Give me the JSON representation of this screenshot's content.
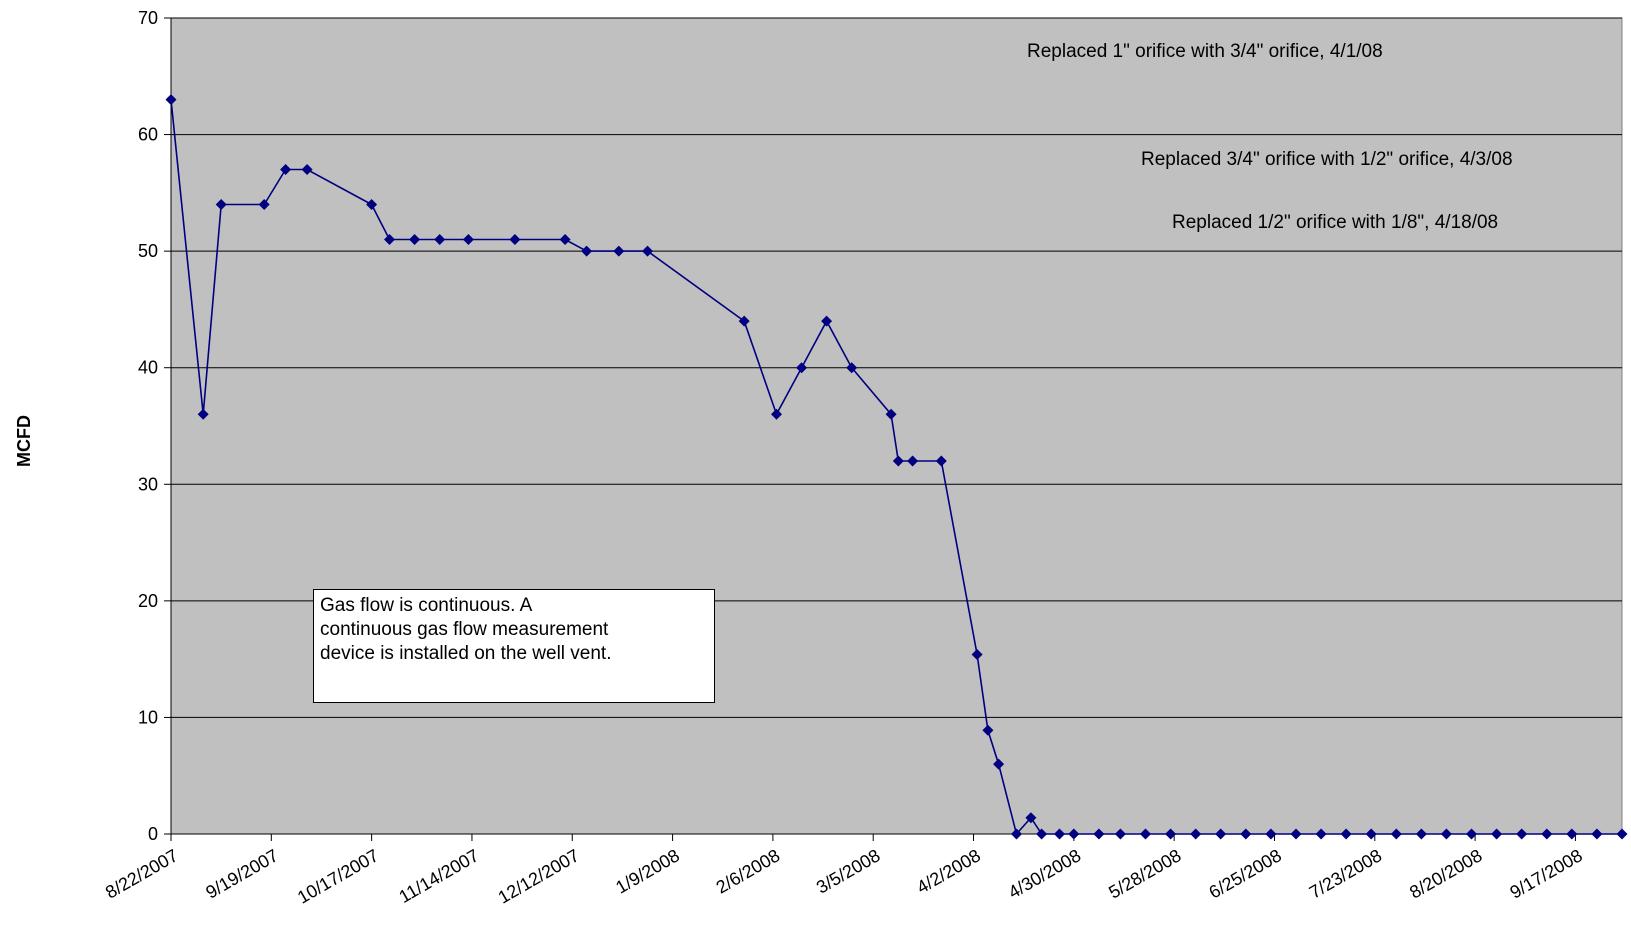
{
  "chart_data": {
    "type": "line",
    "title": "",
    "xlabel": "",
    "ylabel": "MCFD",
    "ylim": [
      0,
      70
    ],
    "yticks": [
      0,
      10,
      20,
      30,
      40,
      50,
      60,
      70
    ],
    "xlim": [
      "8/22/2007",
      "9/30/2008"
    ],
    "xticks": [
      "8/22/2007",
      "9/19/2007",
      "10/17/2007",
      "11/14/2007",
      "12/12/2007",
      "1/9/2008",
      "2/6/2008",
      "3/5/2008",
      "4/2/2008",
      "4/30/2008",
      "5/28/2008",
      "6/25/2008",
      "7/23/2008",
      "8/20/2008",
      "9/17/2008"
    ],
    "grid": "horizontal",
    "plot_background": "#c0c0c0",
    "series_color": "#000080",
    "marker": "diamond",
    "series": [
      {
        "points": [
          [
            "8/22/2007",
            63
          ],
          [
            "8/31/2007",
            36
          ],
          [
            "9/5/2007",
            54
          ],
          [
            "9/17/2007",
            54
          ],
          [
            "9/23/2007",
            57
          ],
          [
            "9/29/2007",
            57
          ],
          [
            "10/17/2007",
            54
          ],
          [
            "10/22/2007",
            51
          ],
          [
            "10/29/2007",
            51
          ],
          [
            "11/5/2007",
            51
          ],
          [
            "11/13/2007",
            51
          ],
          [
            "11/26/2007",
            51
          ],
          [
            "12/10/2007",
            51
          ],
          [
            "12/16/2007",
            50
          ],
          [
            "12/25/2007",
            50
          ],
          [
            "1/2/2008",
            50
          ],
          [
            "1/29/2008",
            44
          ],
          [
            "2/7/2008",
            36
          ],
          [
            "2/14/2008",
            40
          ],
          [
            "2/21/2008",
            44
          ],
          [
            "2/28/2008",
            40
          ],
          [
            "3/10/2008",
            36
          ],
          [
            "3/12/2008",
            32
          ],
          [
            "3/16/2008",
            32
          ],
          [
            "3/24/2008",
            32
          ],
          [
            "4/3/2008",
            15.4
          ],
          [
            "4/6/2008",
            8.9
          ],
          [
            "4/9/2008",
            6
          ],
          [
            "4/14/2008",
            0
          ],
          [
            "4/18/2008",
            1.4
          ],
          [
            "4/21/2008",
            0
          ],
          [
            "4/26/2008",
            0
          ],
          [
            "4/30/2008",
            0
          ],
          [
            "5/7/2008",
            0
          ],
          [
            "5/13/2008",
            0
          ],
          [
            "5/20/2008",
            0
          ],
          [
            "5/27/2008",
            0
          ],
          [
            "6/3/2008",
            0
          ],
          [
            "6/10/2008",
            0
          ],
          [
            "6/17/2008",
            0
          ],
          [
            "6/24/2008",
            0
          ],
          [
            "7/1/2008",
            0
          ],
          [
            "7/8/2008",
            0
          ],
          [
            "7/15/2008",
            0
          ],
          [
            "7/22/2008",
            0
          ],
          [
            "7/29/2008",
            0
          ],
          [
            "8/5/2008",
            0
          ],
          [
            "8/12/2008",
            0
          ],
          [
            "8/19/2008",
            0
          ],
          [
            "8/26/2008",
            0
          ],
          [
            "9/2/2008",
            0
          ],
          [
            "9/9/2008",
            0
          ],
          [
            "9/16/2008",
            0
          ],
          [
            "9/23/2008",
            0
          ],
          [
            "9/30/2008",
            0
          ]
        ]
      }
    ],
    "annotations": [
      "Replaced 1\" orifice with 3/4\" orifice, 4/1/08",
      "Replaced 3/4\" orifice with 1/2\" orifice, 4/3/08",
      "Replaced 1/2\" orifice with 1/8\", 4/18/08"
    ],
    "note": "Gas flow is continuous.  A\ncontinuous gas flow measurement\ndevice is installed on the well vent."
  }
}
